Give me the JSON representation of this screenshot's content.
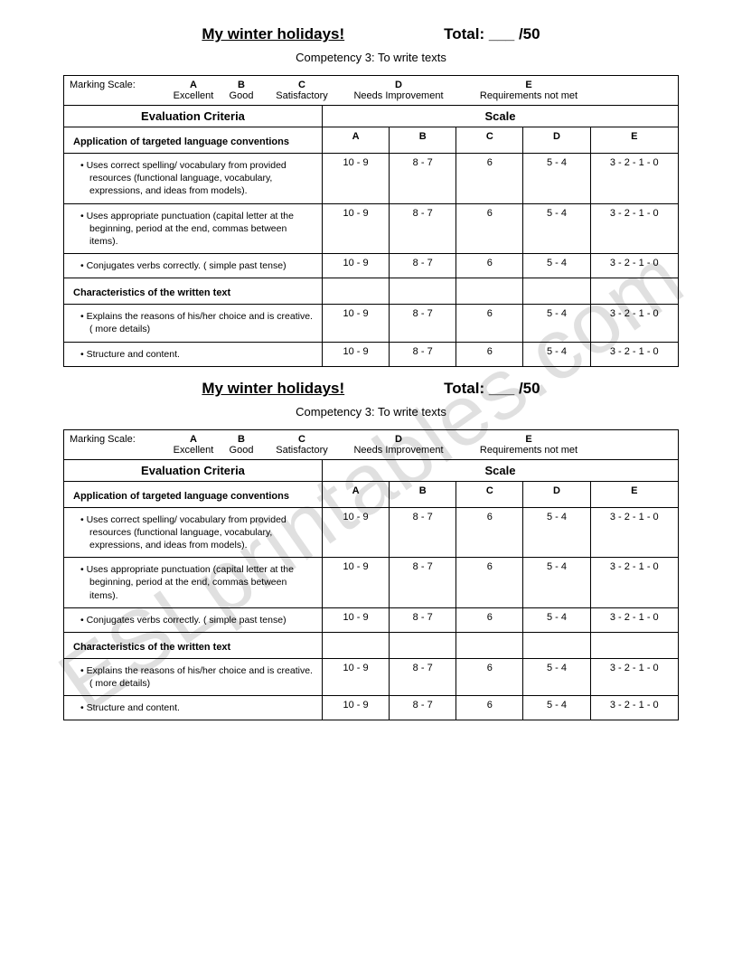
{
  "watermark": "ESLprintables.com",
  "rubric": {
    "title": "My winter holidays!",
    "total_label": "Total: ___ /50",
    "subtitle": "Competency 3: To write texts",
    "marking_label": "Marking Scale:",
    "grades": {
      "A": {
        "letter": "A",
        "desc": "Excellent"
      },
      "B": {
        "letter": "B",
        "desc": "Good"
      },
      "C": {
        "letter": "C",
        "desc": "Satisfactory"
      },
      "D": {
        "letter": "D",
        "desc": "Needs Improvement"
      },
      "E": {
        "letter": "E",
        "desc": "Requirements not met"
      }
    },
    "header_criteria": "Evaluation Criteria",
    "header_scale": "Scale",
    "section1": {
      "title": "Application of targeted language conventions",
      "items": {
        "0": "Uses correct spelling/ vocabulary from provided resources (functional language, vocabulary, expressions, and ideas from models).",
        "1": "Uses appropriate punctuation (capital letter at the beginning, period at the end, commas between items).",
        "2": "Conjugates verbs correctly. ( simple past tense)"
      }
    },
    "section2": {
      "title": "Characteristics of the written text",
      "items": {
        "0": "Explains the reasons of his/her choice and is creative. ( more details)",
        "1": "Structure and content."
      }
    },
    "scores": {
      "A": "10 - 9",
      "B": "8 - 7",
      "C": "6",
      "D": "5 - 4",
      "E": "3 - 2 - 1 - 0"
    }
  }
}
